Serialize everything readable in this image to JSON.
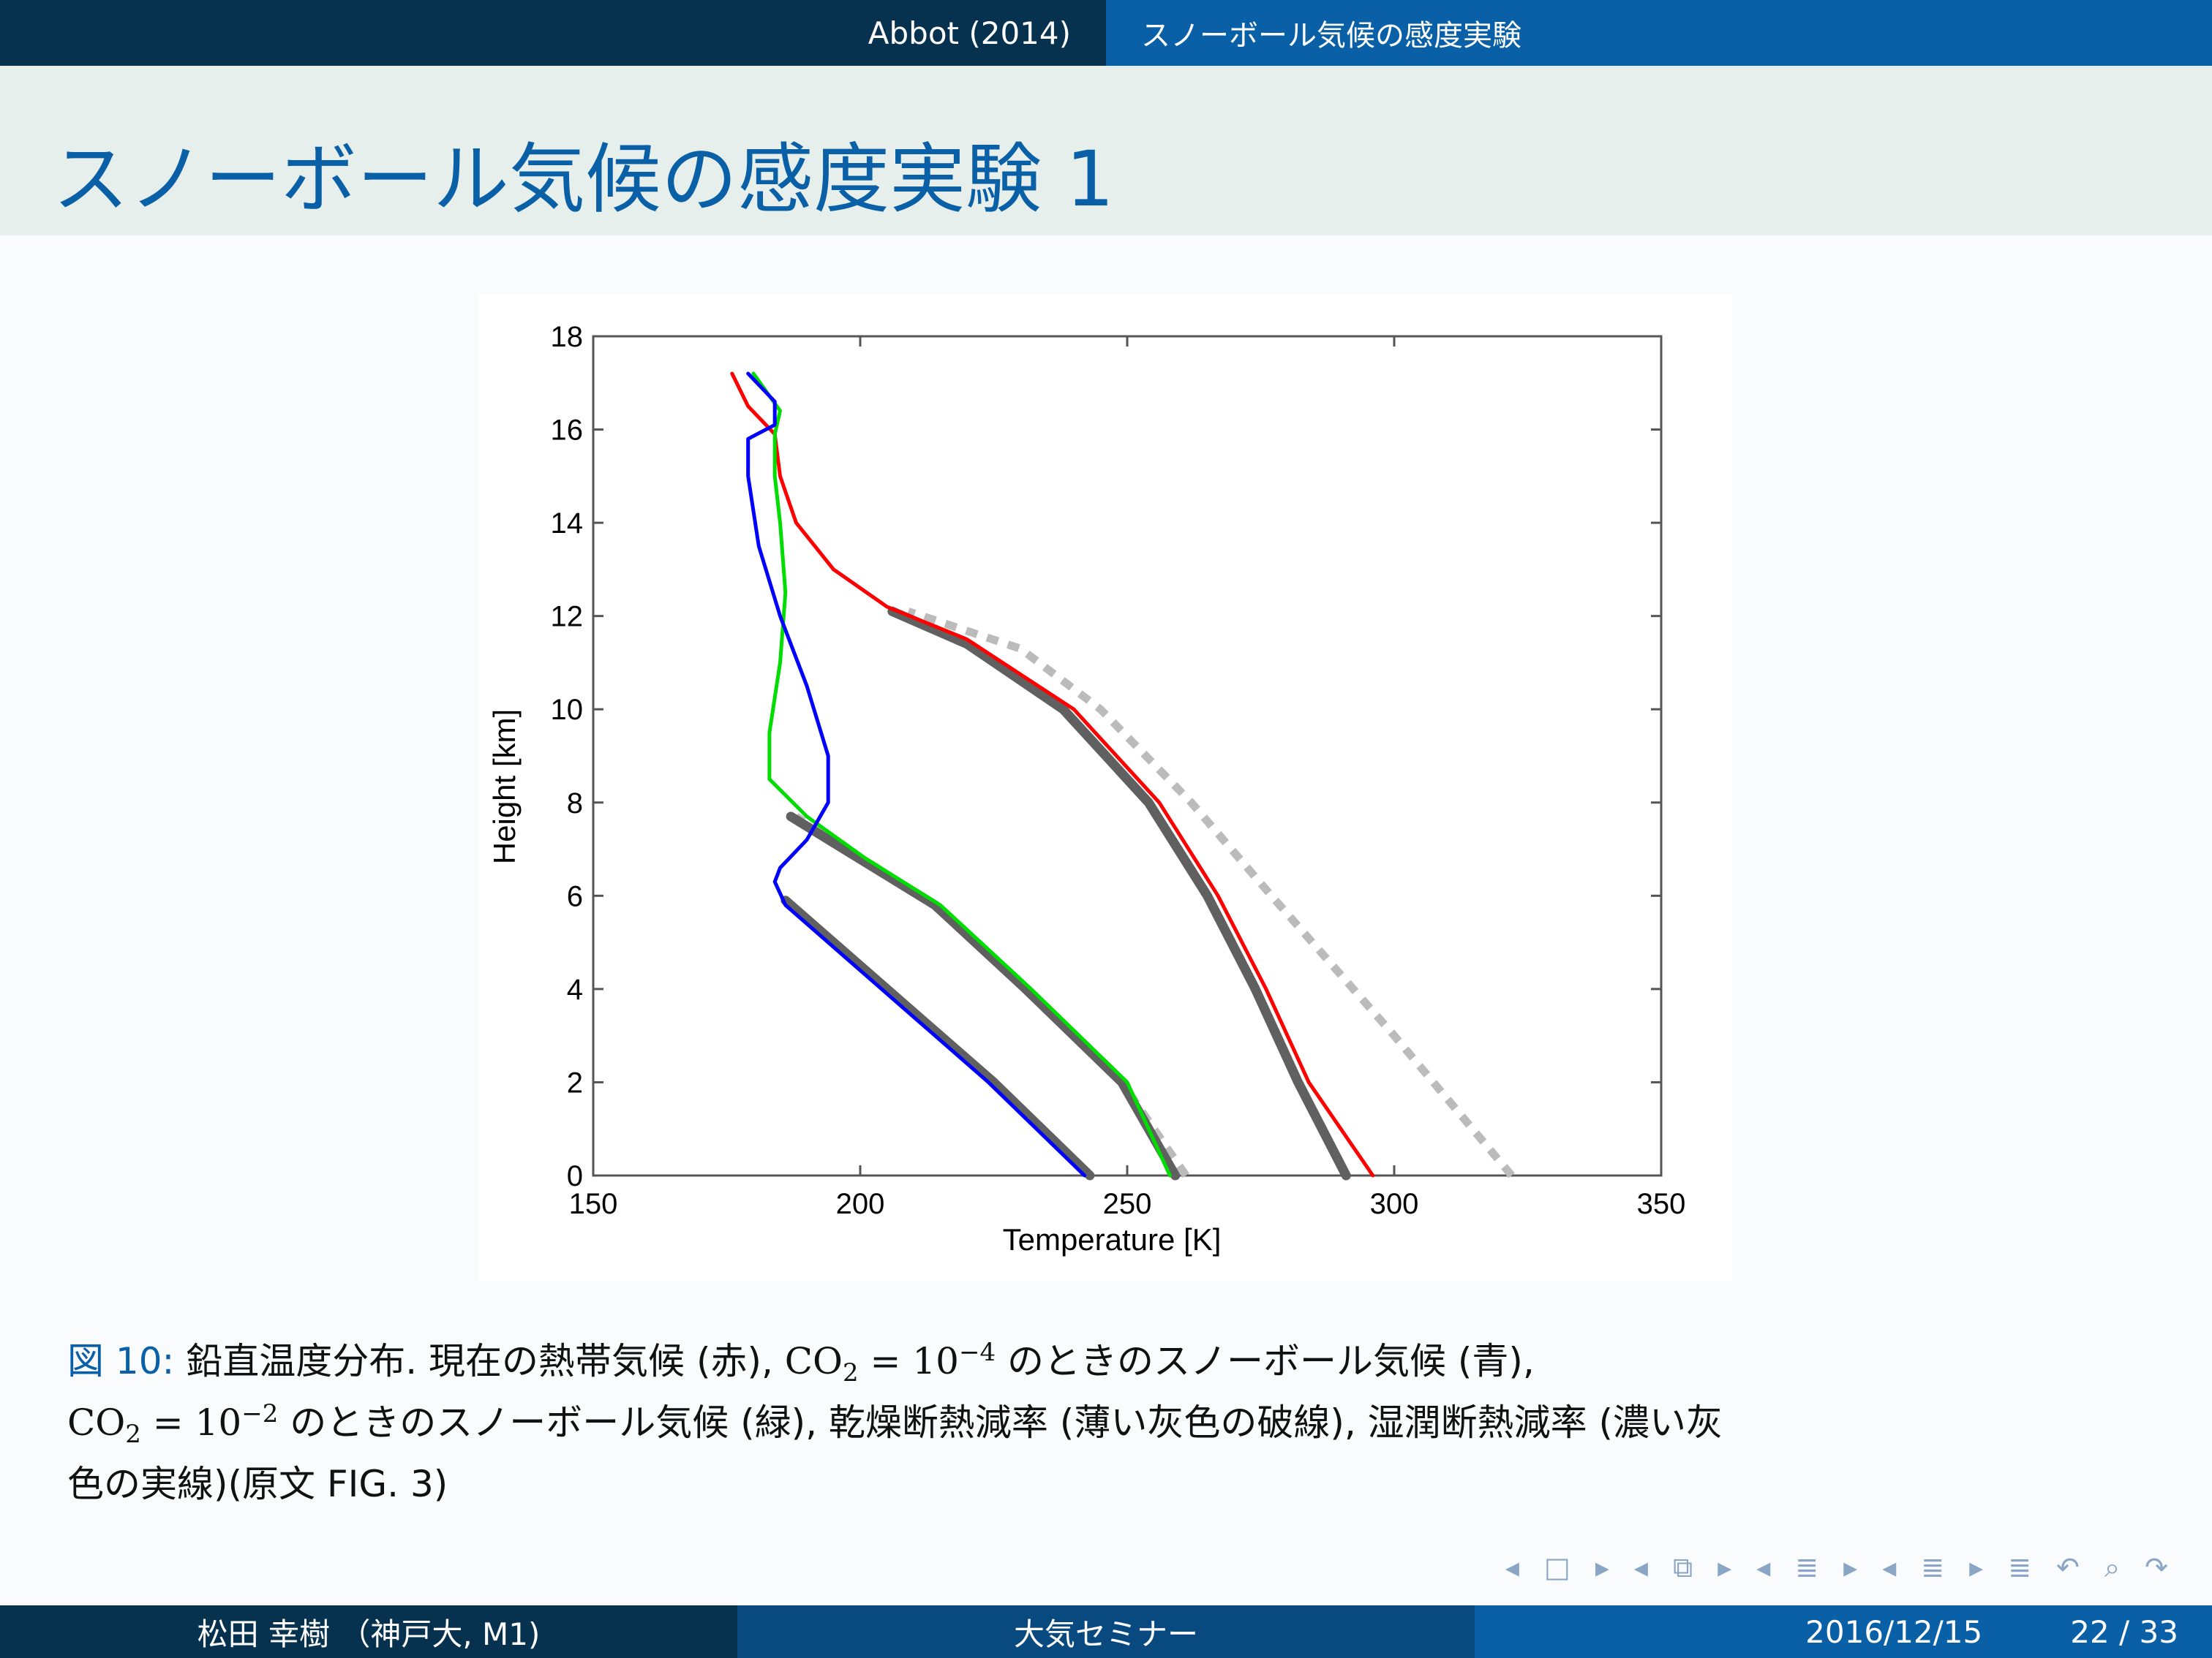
{
  "header": {
    "section_left": "Abbot (2014)",
    "section_right": "スノーボール気候の感度実験"
  },
  "slide": {
    "title": "スノーボール気候の感度実験 1"
  },
  "chart_data": {
    "type": "line",
    "xlabel": "Temperature [K]",
    "ylabel": "Height [km]",
    "xlim": [
      150,
      350
    ],
    "ylim": [
      0,
      18
    ],
    "xticks": [
      "150",
      "200",
      "250",
      "300",
      "350"
    ],
    "yticks": [
      "0",
      "2",
      "4",
      "6",
      "8",
      "10",
      "12",
      "14",
      "16",
      "18"
    ],
    "grid": false,
    "series": [
      {
        "color": "#808080",
        "style": "dashed",
        "points": [
          [
            322,
            0
          ],
          [
            300,
            3
          ],
          [
            277,
            6
          ],
          [
            262,
            8
          ],
          [
            245,
            10
          ],
          [
            230,
            11.3
          ],
          [
            209,
            12.1
          ]
        ]
      },
      {
        "color": "#606060",
        "style": "solid",
        "points": [
          [
            291,
            0
          ],
          [
            282,
            2
          ],
          [
            274,
            4
          ],
          [
            265,
            6
          ],
          [
            254,
            8
          ],
          [
            238,
            10
          ],
          [
            220,
            11.4
          ],
          [
            206,
            12.1
          ]
        ]
      },
      {
        "color": "#808080",
        "style": "dashed",
        "points": [
          [
            261,
            0
          ],
          [
            249,
            2
          ],
          [
            231,
            4
          ],
          [
            214,
            5.8
          ],
          [
            188,
            7.7
          ]
        ]
      },
      {
        "color": "#606060",
        "style": "solid",
        "points": [
          [
            259,
            0
          ],
          [
            249,
            2
          ],
          [
            231,
            4
          ],
          [
            214,
            5.8
          ],
          [
            187,
            7.7
          ]
        ]
      },
      {
        "color": "#606060",
        "style": "solid",
        "points": [
          [
            243,
            0
          ],
          [
            225,
            2
          ],
          [
            205,
            4
          ],
          [
            186,
            5.9
          ]
        ]
      },
      {
        "color": "#ff0000",
        "style": "solid",
        "points": [
          [
            296,
            0
          ],
          [
            290,
            1
          ],
          [
            284,
            2
          ],
          [
            276,
            4
          ],
          [
            267,
            6
          ],
          [
            256,
            8
          ],
          [
            240,
            10
          ],
          [
            220,
            11.5
          ],
          [
            205,
            12.2
          ],
          [
            195,
            13
          ],
          [
            188,
            14
          ],
          [
            185,
            15
          ],
          [
            184,
            15.9
          ],
          [
            179,
            16.5
          ],
          [
            176,
            17.2
          ]
        ]
      },
      {
        "color": "#00dd00",
        "style": "solid",
        "points": [
          [
            258,
            0
          ],
          [
            250,
            2
          ],
          [
            232,
            4
          ],
          [
            215,
            5.8
          ],
          [
            201,
            6.8
          ],
          [
            190,
            7.7
          ],
          [
            183,
            8.5
          ],
          [
            183,
            9.5
          ],
          [
            185,
            11
          ],
          [
            186,
            12.5
          ],
          [
            185,
            14
          ],
          [
            184,
            15
          ],
          [
            184,
            15.9
          ],
          [
            185,
            16.4
          ],
          [
            180,
            17.2
          ]
        ]
      },
      {
        "color": "#0000ff",
        "style": "solid",
        "points": [
          [
            242,
            0
          ],
          [
            224,
            2
          ],
          [
            204,
            4
          ],
          [
            186,
            5.8
          ],
          [
            184,
            6.3
          ],
          [
            185,
            6.6
          ],
          [
            190,
            7.2
          ],
          [
            194,
            8.0
          ],
          [
            194,
            9.0
          ],
          [
            190,
            10.5
          ],
          [
            185,
            12
          ],
          [
            181,
            13.5
          ],
          [
            179,
            15
          ],
          [
            179,
            15.8
          ],
          [
            184,
            16.1
          ],
          [
            184,
            16.6
          ],
          [
            179,
            17.2
          ]
        ]
      }
    ]
  },
  "caption": {
    "fig_label": "図 10:",
    "line1_a": " 鉛直温度分布. 現在の熱帯気候 (赤), ",
    "co2": "CO",
    "sub2": "2",
    "eq": " = 10",
    "exp1": "−4",
    "line1_b": " のときのスノーボール気候 (青),",
    "exp2": "−2",
    "line2_b": " のときのスノーボール気候 (緑), 乾燥断熱減率 (薄い灰色の破線), 湿潤断熱減率 (濃い灰",
    "line3": "色の実線)(原文 FIG. 3)"
  },
  "footer": {
    "author": "松田 幸樹 （神戸大, M1)",
    "event": "大気セミナー",
    "date": "2016/12/15",
    "page": "22 / 33"
  }
}
